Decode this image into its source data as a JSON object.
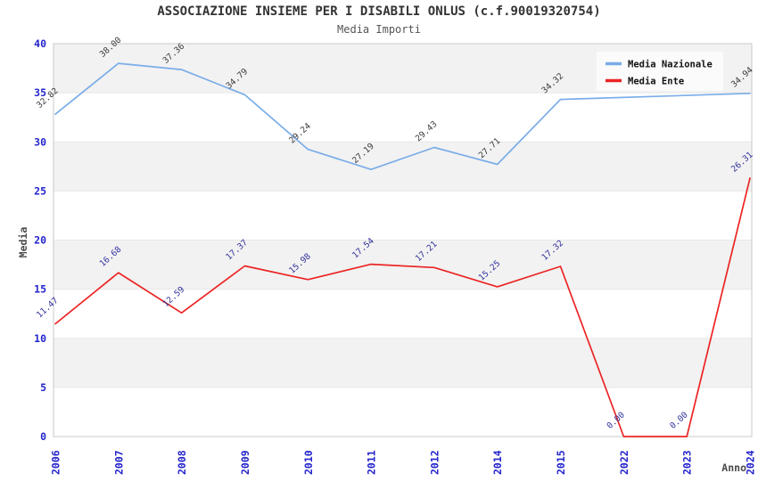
{
  "header": {
    "title": "ASSOCIAZIONE INSIEME PER I DISABILI ONLUS (c.f.90019320754)",
    "subtitle": "Media Importi"
  },
  "chart_data": {
    "type": "line",
    "title": "ASSOCIAZIONE INSIEME PER I DISABILI ONLUS (c.f.90019320754)",
    "subtitle": "Media Importi",
    "xlabel": "Anno",
    "ylabel": "Media",
    "ylim": [
      0,
      40
    ],
    "ytick_step": 5,
    "grid_bands": true,
    "legend_position": "top-right",
    "categories": [
      "2006",
      "2007",
      "2008",
      "2009",
      "2010",
      "2011",
      "2012",
      "2014",
      "2015",
      "2022",
      "2023",
      "2024"
    ],
    "series": [
      {
        "name": "Media Nazionale",
        "color": "#7aade8",
        "label_color": "#3a3a3a",
        "values": [
          32.82,
          38.0,
          37.36,
          34.79,
          29.24,
          27.19,
          29.43,
          27.71,
          34.32,
          null,
          null,
          34.94
        ]
      },
      {
        "name": "Media Ente",
        "color": "#ec2424",
        "label_color": "#32329b",
        "values": [
          11.47,
          16.68,
          12.59,
          17.37,
          15.98,
          17.54,
          17.21,
          15.25,
          17.32,
          0.0,
          0.0,
          26.31
        ]
      }
    ]
  },
  "colors": {
    "tick_label": "#2424cc",
    "band_fill": "#f2f2f2",
    "band_line": "#e8e8e8",
    "frame": "#c9c9c9",
    "axis_title": "#4a4a4a",
    "legend_bg": "#fbfbfb"
  }
}
